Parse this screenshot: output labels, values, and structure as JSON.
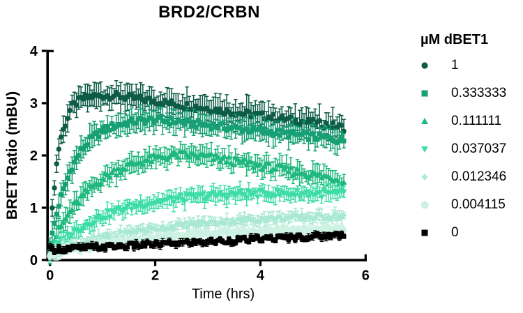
{
  "chart_data": {
    "type": "scatter",
    "title": "BRD2/CRBN",
    "xlabel": "Time (hrs)",
    "ylabel": "BRET Ratio (mBU)",
    "legend_title": "µM dBET1",
    "legend_position": "right",
    "grid": false,
    "xlim": [
      0,
      6
    ],
    "ylim": [
      0,
      4
    ],
    "xticks": [
      0,
      2,
      4,
      6
    ],
    "yticks": [
      0,
      1,
      2,
      3,
      4
    ],
    "x": [
      0,
      0.05,
      0.1,
      0.15,
      0.2,
      0.4,
      0.6,
      0.8,
      1,
      1.2,
      1.4,
      1.6,
      1.8,
      2,
      2.2,
      2.4,
      2.6,
      2.8,
      3,
      3.2,
      3.4,
      3.6,
      3.8,
      4,
      4.2,
      4.4,
      4.6,
      4.8,
      5,
      5.2,
      5.4,
      5.6
    ],
    "series": [
      {
        "label": "1",
        "marker": "circle",
        "color": "#0d5c46",
        "err": 0.22,
        "y": [
          0.3,
          1.06,
          1.62,
          2.03,
          2.33,
          2.92,
          3.08,
          3.13,
          3.14,
          3.15,
          3.12,
          3.09,
          3.07,
          3.04,
          3.01,
          2.98,
          2.95,
          2.93,
          2.9,
          2.87,
          2.84,
          2.81,
          2.79,
          2.76,
          2.73,
          2.7,
          2.67,
          2.65,
          2.62,
          2.59,
          2.56,
          2.53
        ]
      },
      {
        "label": "0.333333",
        "marker": "square",
        "color": "#17a074",
        "err": 0.18,
        "y": [
          0.25,
          0.53,
          0.77,
          0.99,
          1.18,
          1.75,
          2.11,
          2.34,
          2.47,
          2.56,
          2.61,
          2.65,
          2.67,
          2.68,
          2.66,
          2.65,
          2.62,
          2.6,
          2.58,
          2.56,
          2.53,
          2.51,
          2.49,
          2.47,
          2.45,
          2.42,
          2.4,
          2.38,
          2.36,
          2.34,
          2.31,
          2.29
        ]
      },
      {
        "label": "0.111111",
        "marker": "triangle-up",
        "color": "#1fb87e",
        "err": 0.16,
        "y": [
          0.2,
          0.32,
          0.42,
          0.52,
          0.62,
          0.95,
          1.2,
          1.4,
          1.56,
          1.68,
          1.77,
          1.84,
          1.9,
          1.94,
          1.98,
          2.01,
          2.01,
          1.99,
          1.97,
          1.94,
          1.91,
          1.87,
          1.84,
          1.81,
          1.77,
          1.74,
          1.7,
          1.67,
          1.63,
          1.6,
          1.56,
          1.52
        ]
      },
      {
        "label": "0.037037",
        "marker": "triangle-down",
        "color": "#3fdda6",
        "err": 0.13,
        "y": [
          0.15,
          0.2,
          0.25,
          0.3,
          0.34,
          0.5,
          0.63,
          0.74,
          0.84,
          0.91,
          0.98,
          1.03,
          1.08,
          1.11,
          1.14,
          1.17,
          1.19,
          1.21,
          1.22,
          1.24,
          1.25,
          1.26,
          1.26,
          1.27,
          1.27,
          1.27,
          1.27,
          1.27,
          1.27,
          1.27,
          1.26,
          1.26
        ]
      },
      {
        "label": "0.012346",
        "marker": "diamond",
        "color": "#a9e8d2",
        "err": 0.1,
        "y": [
          0.15,
          0.17,
          0.18,
          0.2,
          0.22,
          0.27,
          0.33,
          0.38,
          0.42,
          0.47,
          0.5,
          0.54,
          0.57,
          0.6,
          0.62,
          0.65,
          0.67,
          0.69,
          0.71,
          0.72,
          0.74,
          0.75,
          0.77,
          0.78,
          0.79,
          0.8,
          0.81,
          0.82,
          0.82,
          0.83,
          0.84,
          0.84
        ]
      },
      {
        "label": "0.004115",
        "marker": "circle-large",
        "color": "#cdf2e3",
        "err": 0.08,
        "y": [
          0.12,
          0.13,
          0.14,
          0.15,
          0.16,
          0.2,
          0.23,
          0.27,
          0.3,
          0.32,
          0.35,
          0.37,
          0.39,
          0.42,
          0.43,
          0.45,
          0.47,
          0.48,
          0.5,
          0.51,
          0.52,
          0.53,
          0.54,
          0.55,
          0.56,
          0.57,
          0.58,
          0.58,
          0.59,
          0.6,
          0.6,
          0.61
        ]
      },
      {
        "label": "0",
        "marker": "square",
        "color": "#000000",
        "err": 0.05,
        "y": [
          0.2,
          0.2,
          0.21,
          0.21,
          0.21,
          0.22,
          0.23,
          0.24,
          0.25,
          0.26,
          0.27,
          0.28,
          0.29,
          0.3,
          0.31,
          0.32,
          0.33,
          0.34,
          0.35,
          0.36,
          0.37,
          0.38,
          0.39,
          0.4,
          0.41,
          0.42,
          0.43,
          0.44,
          0.45,
          0.46,
          0.47,
          0.48
        ]
      }
    ]
  }
}
